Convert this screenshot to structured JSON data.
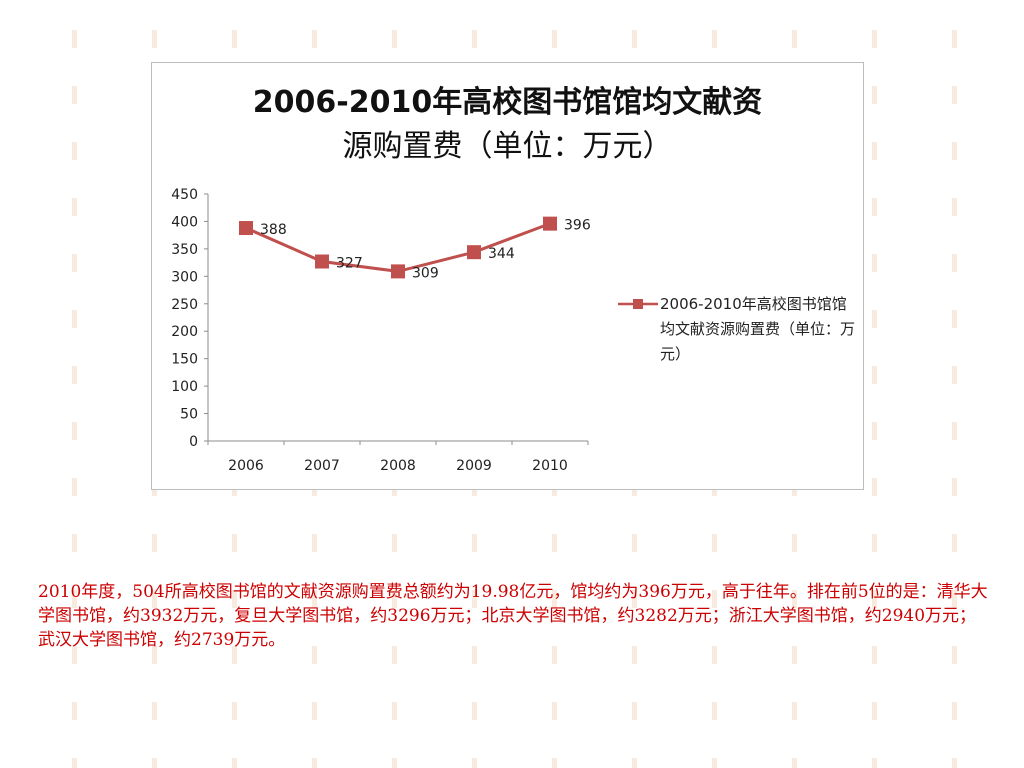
{
  "chart_data": {
    "type": "line",
    "title_line1": "2006-2010年高校图书馆馆均文献资",
    "title_line2": "源购置费（单位：万元）",
    "categories": [
      "2006",
      "2007",
      "2008",
      "2009",
      "2010"
    ],
    "series": [
      {
        "name": "2006-2010年高校图书馆馆均文献资源购置费（单位：万元）",
        "values": [
          388,
          327,
          309,
          344,
          396
        ],
        "color": "#c0504d"
      }
    ],
    "yticks": [
      0,
      50,
      100,
      150,
      200,
      250,
      300,
      350,
      400,
      450
    ],
    "ylim": [
      0,
      450
    ],
    "legend_position": "right",
    "grid": false
  },
  "caption": "2010年度，504所高校图书馆的文献资源购置费总额约为19.98亿元，馆均约为396万元，高于往年。排在前5位的是：清华大学图书馆，约3932万元，复旦大学图书馆，约3296万元；北京大学图书馆，约3282万元；浙江大学图书馆，约2940万元；武汉大学图书馆，约2739万元。",
  "colors": {
    "series": "#c0504d",
    "caption": "#cc0000",
    "decoration": "#f3d9c4"
  }
}
